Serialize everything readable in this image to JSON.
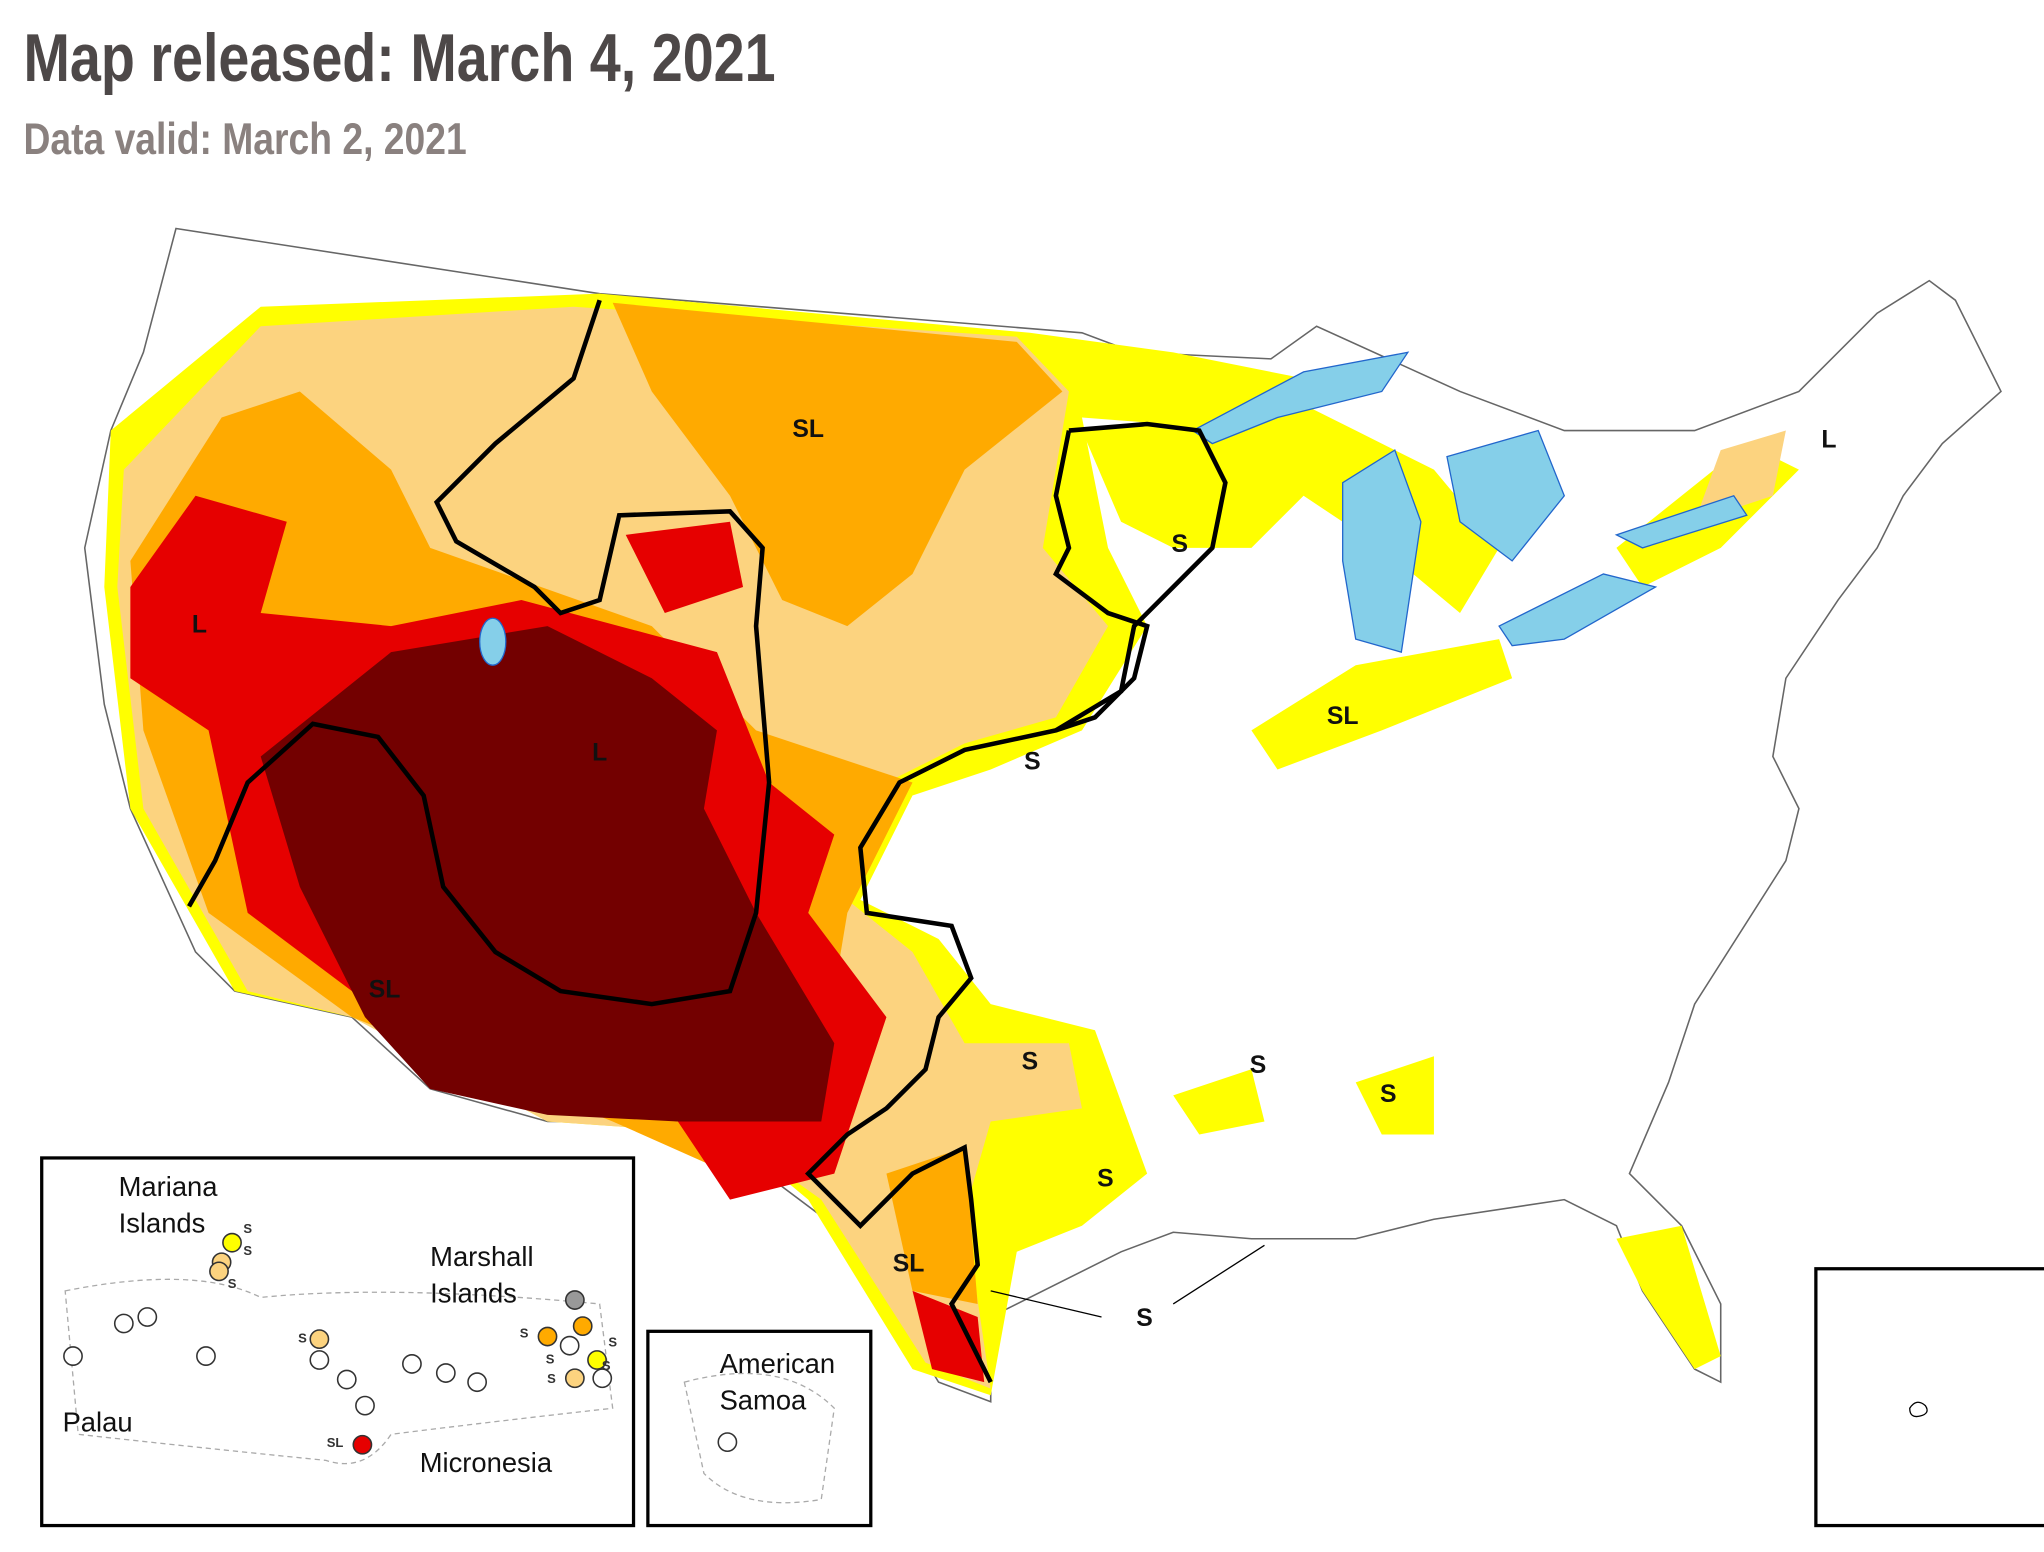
{
  "header": {
    "title": "Map released: March 4, 2021",
    "subtitle": "Data valid: March 2, 2021"
  },
  "map": {
    "impact_labels": [
      "SL",
      "L",
      "S",
      "L",
      "SL",
      "L",
      "S",
      "SL",
      "S",
      "S",
      "S",
      "S",
      "SL",
      "S"
    ]
  },
  "insets": {
    "pacific": {
      "labels": [
        [
          "Mariana",
          "Islands"
        ],
        [
          "Marshall",
          "Islands"
        ],
        [
          "Palau"
        ],
        [
          "Micronesia"
        ]
      ],
      "dot_labels": [
        "S",
        "S",
        "S",
        "S",
        "S",
        "S",
        "S",
        "S",
        "S",
        "SL"
      ]
    },
    "samoa": {
      "label": [
        "American",
        "Samoa"
      ]
    }
  }
}
